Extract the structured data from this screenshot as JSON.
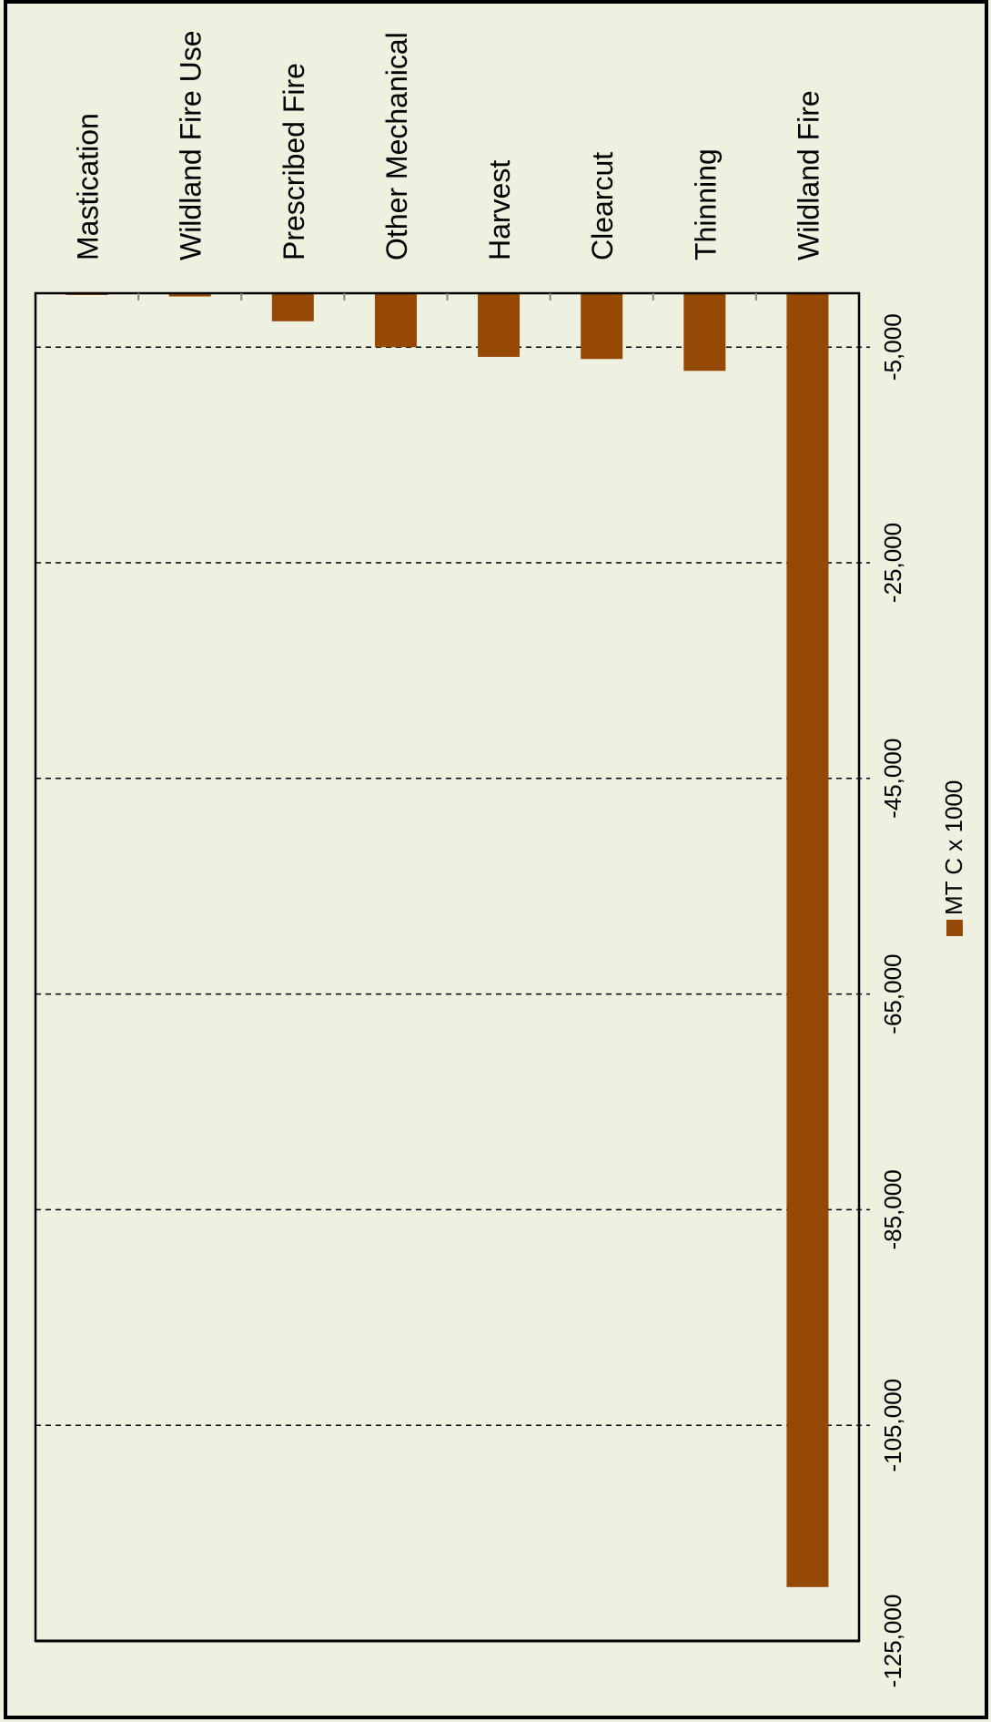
{
  "chart_data": {
    "type": "bar",
    "orientation": "vertical, downward (rotated figure)",
    "categories": [
      "Mastication",
      "Wildland Fire Use",
      "Prescribed Fire",
      "Other Mechanical",
      "Harvest",
      "Clearcut",
      "Thinning",
      "Wildland Fire"
    ],
    "series": [
      {
        "name": "MT C x 1000",
        "values": [
          -150,
          -300,
          -2600,
          -5000,
          -5900,
          -6100,
          -7200,
          -120000
        ]
      }
    ],
    "value_axis": {
      "min": -125000,
      "max": 0,
      "ticks": [
        -5000,
        -25000,
        -45000,
        -65000,
        -85000,
        -105000,
        -125000
      ],
      "tick_labels": [
        "-5,000",
        "-25,000",
        "-45,000",
        "-65,000",
        "-85,000",
        "-105,000",
        "-125,000"
      ]
    },
    "grid": "dashed horizontal gridlines at value ticks",
    "legend": {
      "placement": "right",
      "label": "MT C x 1000"
    },
    "colors": {
      "bar": "#964805",
      "background": "#eef0e0",
      "border": "#000000"
    }
  }
}
